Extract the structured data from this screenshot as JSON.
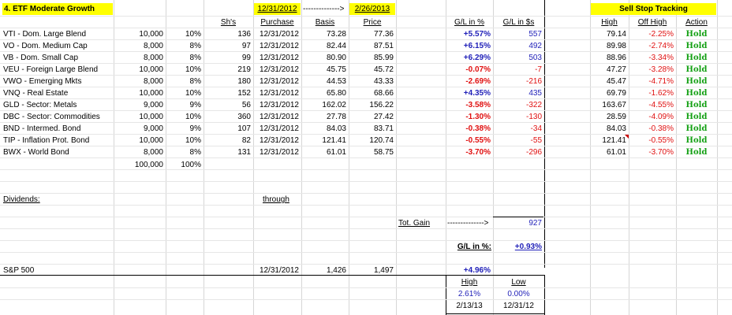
{
  "sheet": {
    "title": "4. ETF Moderate Growth",
    "date_start": "12/31/2012",
    "arrow": "-------------->",
    "date_end": "2/26/2013",
    "headers": {
      "shares": "Sh's",
      "purchase": "Purchase",
      "basis": "Basis",
      "price": "Price",
      "gl_pct": "G/L in %",
      "gl_usd": "G/L in $s"
    },
    "rows": [
      {
        "fund": "VTI - Dom. Large Blend",
        "amount": "10,000",
        "weight": "10%",
        "shares": "136",
        "purchase": "12/31/2012",
        "basis": "73.28",
        "price": "77.36",
        "gl_pct": "+5.57%",
        "gl_usd": "557",
        "positive": true
      },
      {
        "fund": "VO - Dom. Medium Cap",
        "amount": "8,000",
        "weight": "8%",
        "shares": "97",
        "purchase": "12/31/2012",
        "basis": "82.44",
        "price": "87.51",
        "gl_pct": "+6.15%",
        "gl_usd": "492",
        "positive": true
      },
      {
        "fund": "VB - Dom. Small Cap",
        "amount": "8,000",
        "weight": "8%",
        "shares": "99",
        "purchase": "12/31/2012",
        "basis": "80.90",
        "price": "85.99",
        "gl_pct": "+6.29%",
        "gl_usd": "503",
        "positive": true
      },
      {
        "fund": "VEU - Foreign Large Blend",
        "amount": "10,000",
        "weight": "10%",
        "shares": "219",
        "purchase": "12/31/2012",
        "basis": "45.75",
        "price": "45.72",
        "gl_pct": "-0.07%",
        "gl_usd": "-7",
        "positive": false
      },
      {
        "fund": "VWO - Emerging Mkts",
        "amount": "8,000",
        "weight": "8%",
        "shares": "180",
        "purchase": "12/31/2012",
        "basis": "44.53",
        "price": "43.33",
        "gl_pct": "-2.69%",
        "gl_usd": "-216",
        "positive": false
      },
      {
        "fund": "VNQ - Real Estate",
        "amount": "10,000",
        "weight": "10%",
        "shares": "152",
        "purchase": "12/31/2012",
        "basis": "65.80",
        "price": "68.66",
        "gl_pct": "+4.35%",
        "gl_usd": "435",
        "positive": true
      },
      {
        "fund": "GLD - Sector: Metals",
        "amount": "9,000",
        "weight": "9%",
        "shares": "56",
        "purchase": "12/31/2012",
        "basis": "162.02",
        "price": "156.22",
        "gl_pct": "-3.58%",
        "gl_usd": "-322",
        "positive": false
      },
      {
        "fund": "DBC - Sector: Commodities",
        "amount": "10,000",
        "weight": "10%",
        "shares": "360",
        "purchase": "12/31/2012",
        "basis": "27.78",
        "price": "27.42",
        "gl_pct": "-1.30%",
        "gl_usd": "-130",
        "positive": false
      },
      {
        "fund": "BND - Intermed. Bond",
        "amount": "9,000",
        "weight": "9%",
        "shares": "107",
        "purchase": "12/31/2012",
        "basis": "84.03",
        "price": "83.71",
        "gl_pct": "-0.38%",
        "gl_usd": "-34",
        "positive": false
      },
      {
        "fund": "TIP - Inflation Prot. Bond",
        "amount": "10,000",
        "weight": "10%",
        "shares": "82",
        "purchase": "12/31/2012",
        "basis": "121.41",
        "price": "120.74",
        "gl_pct": "-0.55%",
        "gl_usd": "-55",
        "positive": false
      },
      {
        "fund": "BWX - World Bond",
        "amount": "8,000",
        "weight": "8%",
        "shares": "131",
        "purchase": "12/31/2012",
        "basis": "61.01",
        "price": "58.75",
        "gl_pct": "-3.70%",
        "gl_usd": "-296",
        "positive": false
      }
    ],
    "totals": {
      "amount": "100,000",
      "weight": "100%"
    },
    "dividends_label": "Dividends:",
    "through_label": "through",
    "tot_gain_label": "Tot. Gain",
    "tot_gain_arrow": "-------------->",
    "tot_gain_value": "927",
    "gl_pct_label": "G/L in %:",
    "gl_pct_value": "+0.93%",
    "sp500": {
      "label": "S&P 500",
      "date": "12/31/2012",
      "start": "1,426",
      "end": "1,497",
      "gl": "+4.96%"
    },
    "high_low": {
      "high_label": "High",
      "low_label": "Low",
      "high_pct": "2.61%",
      "low_pct": "0.00%",
      "high_date": "2/13/13",
      "low_date": "12/31/12"
    }
  },
  "sell_stop": {
    "title": "Sell Stop Tracking",
    "headers": {
      "high": "High",
      "off_high": "Off High",
      "action": "Action"
    },
    "rows": [
      {
        "high": "79.14",
        "off_high": "-2.25%",
        "action": "Hold"
      },
      {
        "high": "89.98",
        "off_high": "-2.74%",
        "action": "Hold"
      },
      {
        "high": "88.96",
        "off_high": "-3.34%",
        "action": "Hold"
      },
      {
        "high": "47.27",
        "off_high": "-3.28%",
        "action": "Hold"
      },
      {
        "high": "45.47",
        "off_high": "-4.71%",
        "action": "Hold"
      },
      {
        "high": "69.79",
        "off_high": "-1.62%",
        "action": "Hold"
      },
      {
        "high": "163.67",
        "off_high": "-4.55%",
        "action": "Hold"
      },
      {
        "high": "28.59",
        "off_high": "-4.09%",
        "action": "Hold"
      },
      {
        "high": "84.03",
        "off_high": "-0.38%",
        "action": "Hold"
      },
      {
        "high": "121.41",
        "off_high": "-0.55%",
        "action": "Hold"
      },
      {
        "high": "61.01",
        "off_high": "-3.70%",
        "action": "Hold"
      }
    ]
  },
  "colors": {
    "highlight": "#ffff00",
    "gain": "#1f1fb8",
    "loss": "#e01010",
    "hold": "#14a014"
  }
}
